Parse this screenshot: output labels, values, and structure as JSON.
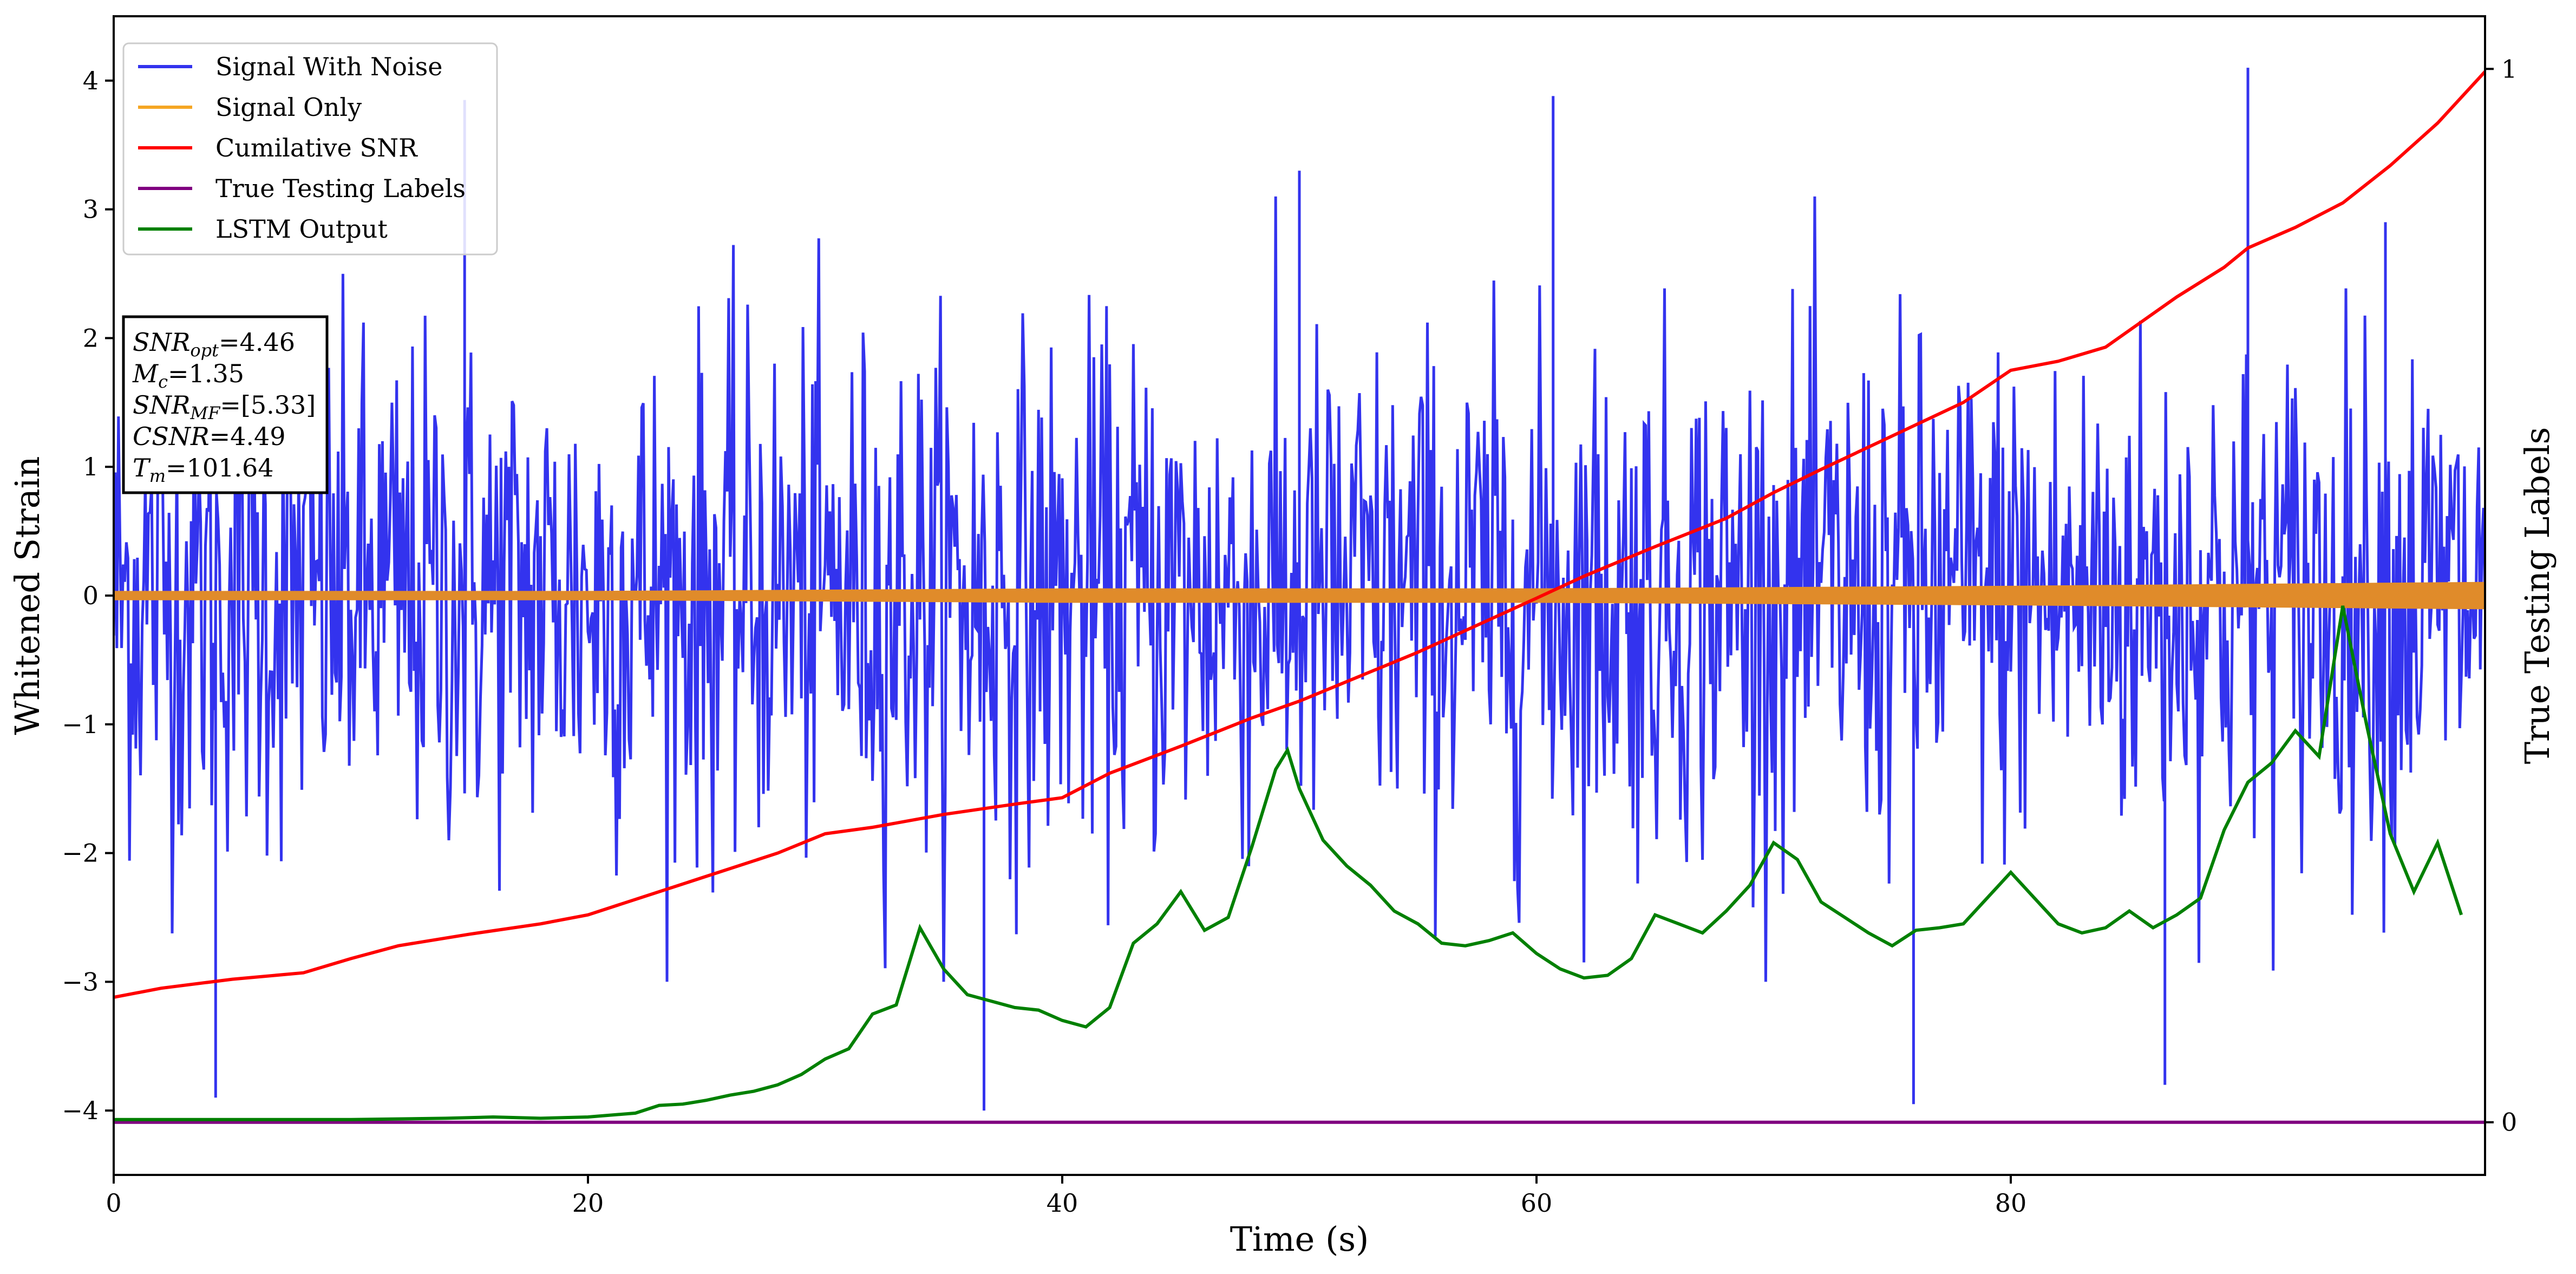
{
  "chart_data": {
    "type": "line",
    "xlabel": "Time (s)",
    "ylabel": "Whitened Strain",
    "y2label": "True Testing Labels",
    "xlim": [
      0,
      100
    ],
    "ylim": [
      -4.5,
      4.5
    ],
    "y2lim": [
      -0.05,
      1.05
    ],
    "xticks": [
      0,
      20,
      40,
      60,
      80
    ],
    "yticks": [
      -4,
      -3,
      -2,
      -1,
      0,
      1,
      2,
      3,
      4
    ],
    "y2ticks": [
      0,
      1
    ],
    "grid": false,
    "legend_position": "top-left",
    "legend": [
      {
        "name": "Signal With Noise",
        "color": "#3333ee"
      },
      {
        "name": "Signal Only",
        "color": "#f5a623"
      },
      {
        "name": "Cumilative SNR",
        "color": "#ff0000"
      },
      {
        "name": "True Testing Labels",
        "color": "#800080"
      },
      {
        "name": "LSTM Output",
        "color": "#008000"
      }
    ],
    "info_box": [
      {
        "sym": "SNR",
        "sub": "opt",
        "val": "=4.46"
      },
      {
        "sym": "M",
        "sub": "c",
        "val": "=1.35"
      },
      {
        "sym": "SNR",
        "sub": "MF",
        "val": "=[5.33]"
      },
      {
        "sym": "CSNR",
        "sub": "",
        "val": "=4.49"
      },
      {
        "sym": "T",
        "sub": "m",
        "val": "=101.64"
      }
    ],
    "series": {
      "signal_with_noise": {
        "axis": "left",
        "color": "#3333ee",
        "description_range": [
          -4.0,
          4.1
        ],
        "peaks": [
          [
            4.3,
            -3.9
          ],
          [
            14.8,
            3.85
          ],
          [
            36.7,
            -4.0
          ],
          [
            50.0,
            3.3
          ],
          [
            60.7,
            3.88
          ],
          [
            75.9,
            -3.95
          ],
          [
            86.5,
            -3.8
          ],
          [
            90.0,
            4.1
          ],
          [
            95.8,
            2.9
          ]
        ]
      },
      "signal_only": {
        "axis": "left",
        "color": "#e08b2a",
        "envelope": [
          [
            0,
            0.03
          ],
          [
            20,
            0.03
          ],
          [
            40,
            0.05
          ],
          [
            60,
            0.05
          ],
          [
            80,
            0.07
          ],
          [
            100,
            0.1
          ]
        ]
      },
      "cumulative_snr": {
        "axis": "left",
        "color": "#ff0000",
        "x": [
          0,
          2,
          5,
          8,
          10,
          12,
          15,
          18,
          20,
          22,
          25,
          28,
          30,
          32,
          35,
          38,
          40,
          42,
          45,
          48,
          50,
          55,
          60,
          62,
          65,
          68,
          70,
          72,
          75,
          78,
          80,
          82,
          84,
          85,
          87,
          89,
          90,
          92,
          94,
          96,
          98,
          100
        ],
        "y": [
          -3.12,
          -3.05,
          -2.98,
          -2.93,
          -2.82,
          -2.72,
          -2.63,
          -2.55,
          -2.48,
          -2.36,
          -2.18,
          -2.0,
          -1.85,
          -1.8,
          -1.7,
          -1.62,
          -1.57,
          -1.38,
          -1.17,
          -0.95,
          -0.82,
          -0.44,
          -0.02,
          0.15,
          0.38,
          0.6,
          0.8,
          0.98,
          1.24,
          1.5,
          1.75,
          1.82,
          1.93,
          2.06,
          2.32,
          2.55,
          2.7,
          2.86,
          3.05,
          3.34,
          3.67,
          4.07
        ]
      },
      "true_testing_labels": {
        "axis": "right",
        "color": "#800080",
        "x": [
          0,
          100
        ],
        "y": [
          0,
          0
        ]
      },
      "lstm_output": {
        "axis": "left",
        "color": "#008000",
        "x": [
          0,
          10,
          14,
          16,
          18,
          20,
          22,
          23,
          24,
          25,
          26,
          27,
          28,
          29,
          30,
          31,
          32,
          33,
          34,
          35,
          36,
          37,
          38,
          39,
          40,
          41,
          42,
          43,
          44,
          45,
          46,
          47,
          48,
          49,
          49.5,
          50,
          51,
          52,
          53,
          54,
          55,
          56,
          57,
          58,
          59,
          60,
          61,
          62,
          63,
          64,
          65,
          66,
          67,
          68,
          69,
          70,
          71,
          72,
          73,
          74,
          75,
          76,
          77,
          78,
          79,
          80,
          81,
          82,
          83,
          84,
          85,
          86,
          87,
          88,
          89,
          90,
          91,
          92,
          93,
          94,
          95,
          96,
          97,
          98,
          99
        ],
        "y": [
          -4.07,
          -4.07,
          -4.06,
          -4.05,
          -4.06,
          -4.05,
          -4.02,
          -3.96,
          -3.95,
          -3.92,
          -3.88,
          -3.85,
          -3.8,
          -3.72,
          -3.6,
          -3.52,
          -3.25,
          -3.18,
          -2.58,
          -2.9,
          -3.1,
          -3.15,
          -3.2,
          -3.22,
          -3.3,
          -3.35,
          -3.2,
          -2.7,
          -2.55,
          -2.3,
          -2.6,
          -2.5,
          -1.95,
          -1.35,
          -1.2,
          -1.5,
          -1.9,
          -2.1,
          -2.25,
          -2.45,
          -2.55,
          -2.7,
          -2.72,
          -2.68,
          -2.62,
          -2.78,
          -2.9,
          -2.97,
          -2.95,
          -2.82,
          -2.48,
          -2.55,
          -2.62,
          -2.45,
          -2.25,
          -1.92,
          -2.05,
          -2.38,
          -2.5,
          -2.62,
          -2.72,
          -2.6,
          -2.58,
          -2.55,
          -2.35,
          -2.15,
          -2.35,
          -2.55,
          -2.62,
          -2.58,
          -2.45,
          -2.58,
          -2.48,
          -2.35,
          -1.82,
          -1.45,
          -1.3,
          -1.05,
          -1.25,
          -0.08,
          -1.0,
          -1.85,
          -2.3,
          -1.92,
          -2.48
        ]
      }
    }
  }
}
